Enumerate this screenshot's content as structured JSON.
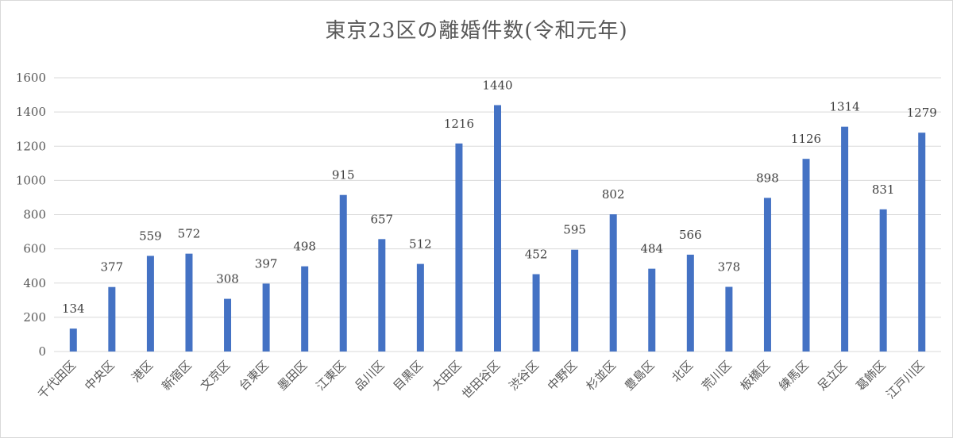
{
  "chart_data": {
    "type": "bar",
    "title": "東京23区の離婚件数(令和元年)",
    "categories": [
      "千代田区",
      "中央区",
      "港区",
      "新宿区",
      "文京区",
      "台東区",
      "墨田区",
      "江東区",
      "品川区",
      "目黒区",
      "大田区",
      "世田谷区",
      "渋谷区",
      "中野区",
      "杉並区",
      "豊島区",
      "北区",
      "荒川区",
      "板橋区",
      "練馬区",
      "足立区",
      "葛飾区",
      "江戸川区"
    ],
    "values": [
      134,
      377,
      559,
      572,
      308,
      397,
      498,
      915,
      657,
      512,
      1216,
      1440,
      452,
      595,
      802,
      484,
      566,
      378,
      898,
      1126,
      1314,
      831,
      1279
    ],
    "value_labels": [
      "134",
      "377",
      "559",
      "572",
      "308",
      "397",
      "498",
      "915",
      "657",
      "512",
      "1216",
      "1440",
      "452",
      "595",
      "802",
      "484",
      "566",
      "378",
      "898",
      "1126",
      "1314",
      "831",
      "1279"
    ],
    "ylim": [
      0,
      1600
    ],
    "y_ticks": [
      "0",
      "200",
      "400",
      "600",
      "800",
      "1000",
      "1200",
      "1400",
      "1600"
    ],
    "grid": true,
    "bar_color": "#4472c4",
    "label_color": "#404040",
    "highlight_label_color": "#ff0000",
    "highlight_index": 20
  }
}
